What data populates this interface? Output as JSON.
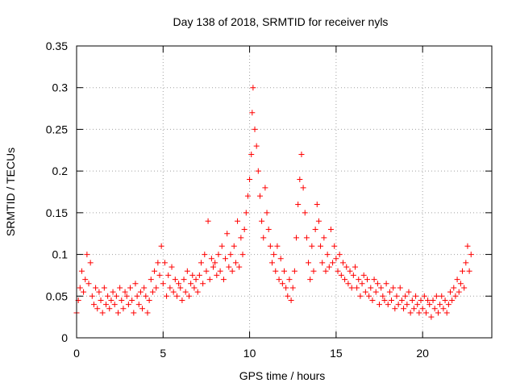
{
  "chart_data": {
    "type": "scatter",
    "title": "Day 138 of 2018, SRMTID for receiver nyls",
    "xlabel": "GPS time / hours",
    "ylabel": "SRMTID / TECUs",
    "xlim": [
      0,
      24
    ],
    "ylim": [
      0,
      0.35
    ],
    "xticks": [
      0,
      5,
      10,
      15,
      20
    ],
    "yticks": [
      0,
      0.05,
      0.1,
      0.15,
      0.2,
      0.25,
      0.3,
      0.35
    ],
    "xtick_labels": [
      "0",
      "5",
      "10",
      "15",
      "20"
    ],
    "ytick_labels": [
      "0",
      "0.05",
      "0.1",
      "0.15",
      "0.2",
      "0.25",
      "0.3",
      "0.35"
    ],
    "grid": true,
    "marker": "+",
    "series_color": "#ff0000",
    "series": [
      {
        "name": "SRMTID",
        "points": [
          [
            0.0,
            0.03
          ],
          [
            0.1,
            0.045
          ],
          [
            0.2,
            0.06
          ],
          [
            0.3,
            0.08
          ],
          [
            0.4,
            0.055
          ],
          [
            0.5,
            0.07
          ],
          [
            0.6,
            0.1
          ],
          [
            0.7,
            0.065
          ],
          [
            0.8,
            0.09
          ],
          [
            0.9,
            0.05
          ],
          [
            1.0,
            0.04
          ],
          [
            1.1,
            0.06
          ],
          [
            1.2,
            0.035
          ],
          [
            1.3,
            0.055
          ],
          [
            1.4,
            0.045
          ],
          [
            1.5,
            0.03
          ],
          [
            1.6,
            0.06
          ],
          [
            1.7,
            0.04
          ],
          [
            1.8,
            0.05
          ],
          [
            1.9,
            0.035
          ],
          [
            2.0,
            0.045
          ],
          [
            2.1,
            0.055
          ],
          [
            2.2,
            0.04
          ],
          [
            2.3,
            0.05
          ],
          [
            2.4,
            0.03
          ],
          [
            2.5,
            0.06
          ],
          [
            2.6,
            0.045
          ],
          [
            2.7,
            0.035
          ],
          [
            2.8,
            0.055
          ],
          [
            2.9,
            0.05
          ],
          [
            3.0,
            0.04
          ],
          [
            3.1,
            0.06
          ],
          [
            3.2,
            0.045
          ],
          [
            3.3,
            0.03
          ],
          [
            3.4,
            0.065
          ],
          [
            3.5,
            0.05
          ],
          [
            3.6,
            0.04
          ],
          [
            3.7,
            0.055
          ],
          [
            3.8,
            0.035
          ],
          [
            3.9,
            0.06
          ],
          [
            4.0,
            0.05
          ],
          [
            4.1,
            0.03
          ],
          [
            4.2,
            0.045
          ],
          [
            4.3,
            0.07
          ],
          [
            4.4,
            0.055
          ],
          [
            4.5,
            0.08
          ],
          [
            4.6,
            0.06
          ],
          [
            4.7,
            0.09
          ],
          [
            4.8,
            0.075
          ],
          [
            4.9,
            0.11
          ],
          [
            5.0,
            0.065
          ],
          [
            5.1,
            0.09
          ],
          [
            5.2,
            0.05
          ],
          [
            5.3,
            0.075
          ],
          [
            5.4,
            0.06
          ],
          [
            5.5,
            0.085
          ],
          [
            5.6,
            0.055
          ],
          [
            5.7,
            0.07
          ],
          [
            5.8,
            0.05
          ],
          [
            5.9,
            0.065
          ],
          [
            6.0,
            0.06
          ],
          [
            6.1,
            0.045
          ],
          [
            6.2,
            0.07
          ],
          [
            6.3,
            0.055
          ],
          [
            6.4,
            0.08
          ],
          [
            6.5,
            0.05
          ],
          [
            6.6,
            0.065
          ],
          [
            6.7,
            0.075
          ],
          [
            6.8,
            0.06
          ],
          [
            6.9,
            0.07
          ],
          [
            7.0,
            0.055
          ],
          [
            7.1,
            0.075
          ],
          [
            7.2,
            0.09
          ],
          [
            7.3,
            0.065
          ],
          [
            7.4,
            0.1
          ],
          [
            7.5,
            0.08
          ],
          [
            7.6,
            0.14
          ],
          [
            7.7,
            0.07
          ],
          [
            7.8,
            0.095
          ],
          [
            7.9,
            0.085
          ],
          [
            8.0,
            0.09
          ],
          [
            8.1,
            0.075
          ],
          [
            8.2,
            0.1
          ],
          [
            8.3,
            0.08
          ],
          [
            8.4,
            0.11
          ],
          [
            8.5,
            0.07
          ],
          [
            8.6,
            0.095
          ],
          [
            8.7,
            0.125
          ],
          [
            8.8,
            0.085
          ],
          [
            8.9,
            0.1
          ],
          [
            9.0,
            0.08
          ],
          [
            9.1,
            0.11
          ],
          [
            9.2,
            0.09
          ],
          [
            9.3,
            0.14
          ],
          [
            9.4,
            0.085
          ],
          [
            9.5,
            0.12
          ],
          [
            9.6,
            0.1
          ],
          [
            9.7,
            0.13
          ],
          [
            9.8,
            0.15
          ],
          [
            9.9,
            0.17
          ],
          [
            10.0,
            0.19
          ],
          [
            10.1,
            0.22
          ],
          [
            10.15,
            0.27
          ],
          [
            10.2,
            0.3
          ],
          [
            10.3,
            0.25
          ],
          [
            10.4,
            0.23
          ],
          [
            10.5,
            0.2
          ],
          [
            10.6,
            0.17
          ],
          [
            10.7,
            0.14
          ],
          [
            10.8,
            0.12
          ],
          [
            10.9,
            0.18
          ],
          [
            11.0,
            0.15
          ],
          [
            11.1,
            0.13
          ],
          [
            11.2,
            0.11
          ],
          [
            11.3,
            0.09
          ],
          [
            11.4,
            0.1
          ],
          [
            11.5,
            0.08
          ],
          [
            11.6,
            0.11
          ],
          [
            11.7,
            0.07
          ],
          [
            11.8,
            0.095
          ],
          [
            11.9,
            0.065
          ],
          [
            12.0,
            0.08
          ],
          [
            12.1,
            0.06
          ],
          [
            12.2,
            0.05
          ],
          [
            12.3,
            0.07
          ],
          [
            12.4,
            0.045
          ],
          [
            12.5,
            0.06
          ],
          [
            12.6,
            0.08
          ],
          [
            12.7,
            0.12
          ],
          [
            12.8,
            0.16
          ],
          [
            12.9,
            0.19
          ],
          [
            13.0,
            0.22
          ],
          [
            13.1,
            0.18
          ],
          [
            13.2,
            0.15
          ],
          [
            13.3,
            0.12
          ],
          [
            13.4,
            0.09
          ],
          [
            13.5,
            0.07
          ],
          [
            13.6,
            0.11
          ],
          [
            13.7,
            0.08
          ],
          [
            13.8,
            0.13
          ],
          [
            13.9,
            0.16
          ],
          [
            14.0,
            0.14
          ],
          [
            14.1,
            0.11
          ],
          [
            14.2,
            0.09
          ],
          [
            14.3,
            0.12
          ],
          [
            14.4,
            0.08
          ],
          [
            14.5,
            0.1
          ],
          [
            14.6,
            0.085
          ],
          [
            14.7,
            0.13
          ],
          [
            14.8,
            0.09
          ],
          [
            14.9,
            0.11
          ],
          [
            15.0,
            0.095
          ],
          [
            15.1,
            0.08
          ],
          [
            15.2,
            0.1
          ],
          [
            15.3,
            0.075
          ],
          [
            15.4,
            0.09
          ],
          [
            15.5,
            0.07
          ],
          [
            15.6,
            0.085
          ],
          [
            15.7,
            0.065
          ],
          [
            15.8,
            0.08
          ],
          [
            15.9,
            0.06
          ],
          [
            16.0,
            0.075
          ],
          [
            16.1,
            0.085
          ],
          [
            16.2,
            0.06
          ],
          [
            16.3,
            0.07
          ],
          [
            16.4,
            0.05
          ],
          [
            16.5,
            0.065
          ],
          [
            16.6,
            0.075
          ],
          [
            16.7,
            0.055
          ],
          [
            16.8,
            0.07
          ],
          [
            16.9,
            0.05
          ],
          [
            17.0,
            0.06
          ],
          [
            17.1,
            0.045
          ],
          [
            17.2,
            0.07
          ],
          [
            17.3,
            0.055
          ],
          [
            17.4,
            0.065
          ],
          [
            17.5,
            0.04
          ],
          [
            17.6,
            0.06
          ],
          [
            17.7,
            0.05
          ],
          [
            17.8,
            0.045
          ],
          [
            17.9,
            0.065
          ],
          [
            18.0,
            0.04
          ],
          [
            18.1,
            0.055
          ],
          [
            18.2,
            0.045
          ],
          [
            18.3,
            0.06
          ],
          [
            18.4,
            0.035
          ],
          [
            18.5,
            0.05
          ],
          [
            18.6,
            0.04
          ],
          [
            18.7,
            0.06
          ],
          [
            18.8,
            0.045
          ],
          [
            18.9,
            0.035
          ],
          [
            19.0,
            0.05
          ],
          [
            19.1,
            0.04
          ],
          [
            19.2,
            0.055
          ],
          [
            19.3,
            0.03
          ],
          [
            19.4,
            0.045
          ],
          [
            19.5,
            0.035
          ],
          [
            19.6,
            0.05
          ],
          [
            19.7,
            0.04
          ],
          [
            19.8,
            0.03
          ],
          [
            19.9,
            0.045
          ],
          [
            20.0,
            0.035
          ],
          [
            20.1,
            0.05
          ],
          [
            20.2,
            0.03
          ],
          [
            20.3,
            0.045
          ],
          [
            20.4,
            0.04
          ],
          [
            20.5,
            0.025
          ],
          [
            20.6,
            0.045
          ],
          [
            20.7,
            0.035
          ],
          [
            20.8,
            0.05
          ],
          [
            20.9,
            0.03
          ],
          [
            21.0,
            0.04
          ],
          [
            21.1,
            0.05
          ],
          [
            21.2,
            0.035
          ],
          [
            21.3,
            0.045
          ],
          [
            21.4,
            0.03
          ],
          [
            21.5,
            0.04
          ],
          [
            21.6,
            0.055
          ],
          [
            21.7,
            0.045
          ],
          [
            21.8,
            0.06
          ],
          [
            21.9,
            0.05
          ],
          [
            22.0,
            0.07
          ],
          [
            22.1,
            0.055
          ],
          [
            22.2,
            0.065
          ],
          [
            22.3,
            0.08
          ],
          [
            22.4,
            0.06
          ],
          [
            22.5,
            0.09
          ],
          [
            22.6,
            0.11
          ],
          [
            22.7,
            0.08
          ],
          [
            22.8,
            0.1
          ]
        ]
      }
    ]
  }
}
